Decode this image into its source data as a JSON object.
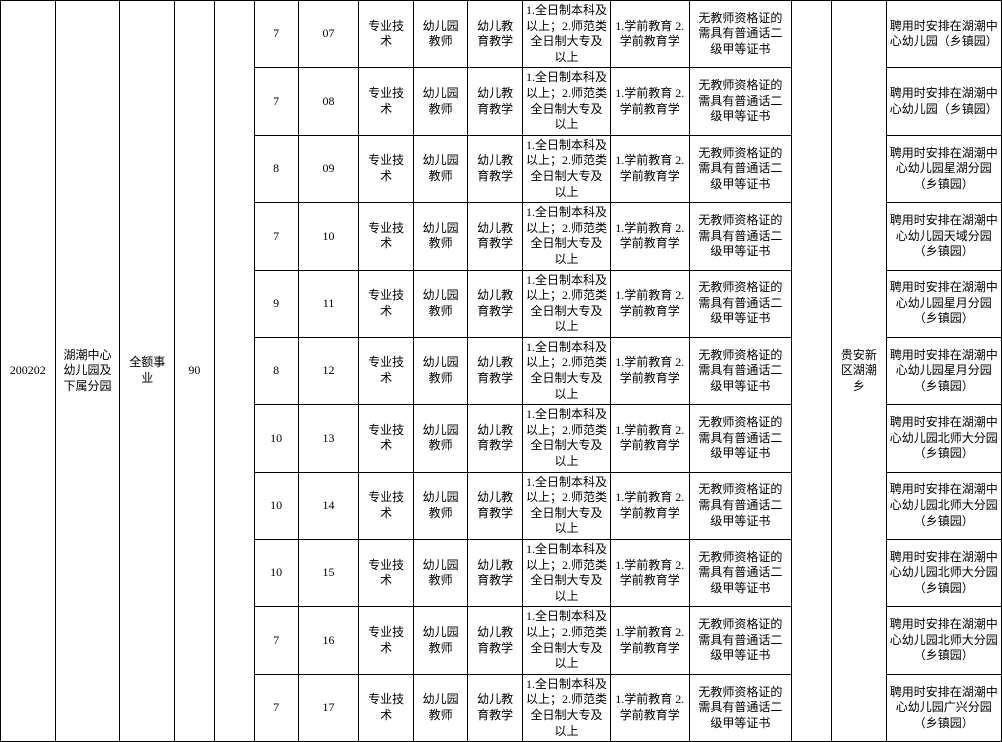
{
  "table": {
    "border_color": "#000000",
    "background_color": "#ffffff",
    "text_color": "#000000",
    "font_size": 12,
    "font_family": "SimSun",
    "code": "200202",
    "unit_name": "湖潮中心幼儿园及下属分园",
    "unit_type": "全额事业",
    "total_count": "90",
    "location": "贵安新区湖潮乡",
    "category": "专业技术",
    "position": "幼儿园教师",
    "subject": "幼儿教育教学",
    "education": "1.全日制本科及以上；2.师范类全日制大专及以上",
    "major": "1.学前教育 2.学前教育学",
    "cert": "无教师资格证的需具有普通话二级甲等证书",
    "rows": [
      {
        "count": "7",
        "num": "07",
        "note": "聘用时安排在湖潮中心幼儿园（乡镇园）"
      },
      {
        "count": "7",
        "num": "08",
        "note": "聘用时安排在湖潮中心幼儿园（乡镇园）"
      },
      {
        "count": "8",
        "num": "09",
        "note": "聘用时安排在湖潮中心幼儿园星湖分园（乡镇园）"
      },
      {
        "count": "7",
        "num": "10",
        "note": "聘用时安排在湖潮中心幼儿园天域分园（乡镇园）"
      },
      {
        "count": "9",
        "num": "11",
        "note": "聘用时安排在湖潮中心幼儿园星月分园（乡镇园）"
      },
      {
        "count": "8",
        "num": "12",
        "note": "聘用时安排在湖潮中心幼儿园星月分园（乡镇园）"
      },
      {
        "count": "10",
        "num": "13",
        "note": "聘用时安排在湖潮中心幼儿园北师大分园（乡镇园）"
      },
      {
        "count": "10",
        "num": "14",
        "note": "聘用时安排在湖潮中心幼儿园北师大分园（乡镇园）"
      },
      {
        "count": "10",
        "num": "15",
        "note": "聘用时安排在湖潮中心幼儿园北师大分园（乡镇园）"
      },
      {
        "count": "7",
        "num": "16",
        "note": "聘用时安排在湖潮中心幼儿园北师大分园（乡镇园）"
      },
      {
        "count": "7",
        "num": "17",
        "note": "聘用时安排在湖潮中心幼儿园广兴分园（乡镇园）"
      }
    ]
  }
}
